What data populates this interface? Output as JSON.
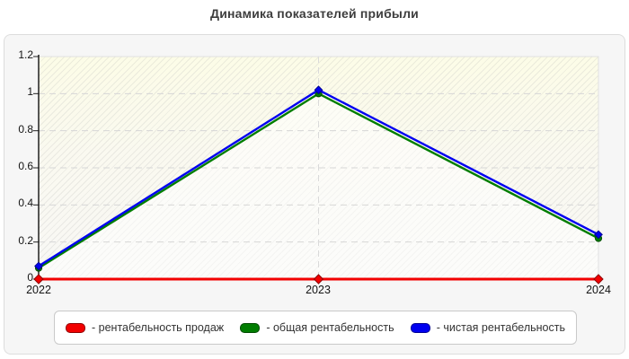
{
  "chart_data": {
    "type": "line",
    "title": "Динамика показателей прибыли",
    "x_labels": [
      "2022",
      "2023",
      "2024"
    ],
    "y_tick_labels": [
      "0",
      "0.2",
      "0.4",
      "0.6",
      "0.8",
      "1",
      "1.2"
    ],
    "ylim": [
      0,
      1.2
    ],
    "xlabel": "",
    "ylabel": "",
    "layout": {
      "legend_position": "bottom",
      "grid_dashed": true,
      "plot_hatch": true
    },
    "series": [
      {
        "name": "рентабельность продаж",
        "legend_label": "- рентабельность продаж",
        "color": "#f20000",
        "edge_color": "#8f0000",
        "marker": "diamond",
        "values": [
          0,
          0,
          0
        ]
      },
      {
        "name": "общая рентабельность",
        "legend_label": "- общая рентабельность",
        "color": "#007d00",
        "edge_color": "#004b00",
        "marker": "circle",
        "values": [
          0.06,
          1.0,
          0.22
        ]
      },
      {
        "name": "чистая рентабельность",
        "legend_label": "- чистая рентабельность",
        "color": "#0000f0",
        "edge_color": "#000094",
        "marker": "diamond",
        "values": [
          0.07,
          1.02,
          0.24
        ]
      }
    ]
  }
}
